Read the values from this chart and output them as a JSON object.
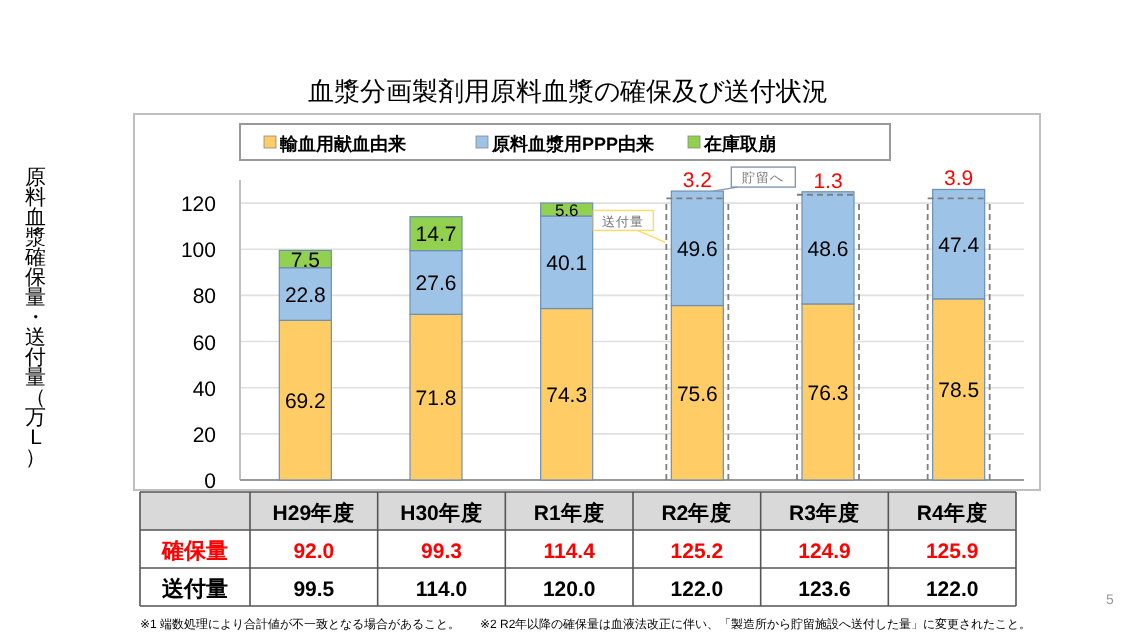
{
  "chart_data": {
    "type": "bar",
    "title": "血漿分画製剤用原料血漿の確保及び送付状況",
    "ylabel": "原料血漿確保量・送付量（万L）",
    "categories": [
      "H29年度",
      "H30年度",
      "R1年度",
      "R2年度",
      "R3年度",
      "R4年度"
    ],
    "stacked": true,
    "data_labels": true,
    "legend": "top",
    "grid": "y",
    "ylim": [
      0,
      130
    ],
    "yticks": [
      0,
      20,
      40,
      60,
      80,
      100,
      120
    ],
    "series": [
      {
        "name": "輸血用献血由来",
        "color": "#ffcc66",
        "values": [
          69.2,
          71.8,
          74.3,
          75.6,
          76.3,
          78.5
        ]
      },
      {
        "name": "原料血漿用PPP由来",
        "color": "#9dc3e6",
        "values": [
          22.8,
          27.6,
          40.1,
          49.6,
          48.6,
          47.4
        ]
      },
      {
        "name": "在庫取崩",
        "color": "#92d050",
        "values": [
          7.5,
          14.7,
          5.6,
          null,
          null,
          null
        ]
      }
    ],
    "annotations": [
      "送付量",
      "貯留へ",
      {
        "text": "3.2",
        "x": "R2年度",
        "y": 125.2
      },
      {
        "text": "1.3",
        "x": "R3年度",
        "y": 124.9
      },
      {
        "text": "3.9",
        "x": "R4年度",
        "y": 125.9
      },
      "確保量",
      "92.0",
      "99.3",
      "114.4",
      "125.2",
      "124.9",
      "125.9",
      "送付量",
      "99.5",
      "114.0",
      "120.0",
      "122.0",
      "123.6",
      "122.0",
      "※1 端数処理により合計値が不一致となる場合があること。",
      "※2 R2年以降の確保量は血液法改正に伴い、「製造所から貯留施設へ送付した量」に変更されたこと。",
      "5"
    ]
  }
}
